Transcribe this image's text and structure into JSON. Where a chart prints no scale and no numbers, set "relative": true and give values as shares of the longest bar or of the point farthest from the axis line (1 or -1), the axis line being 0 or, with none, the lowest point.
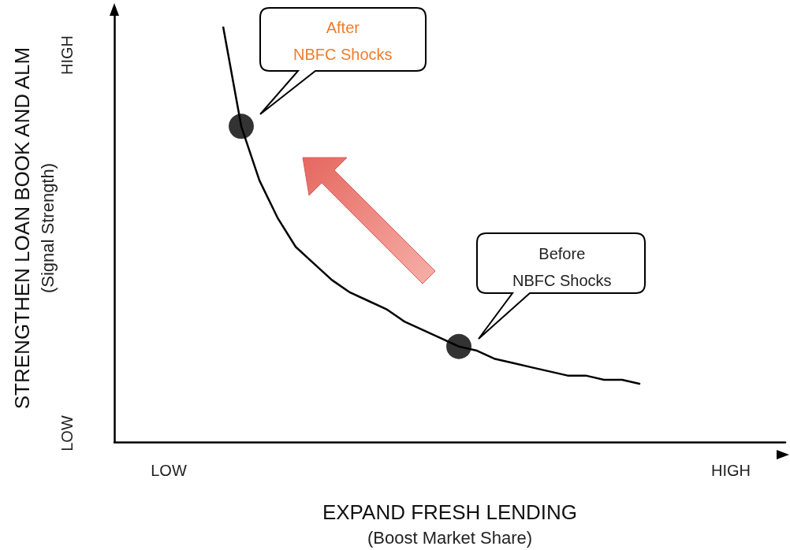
{
  "chart_data": {
    "type": "line",
    "relative": true,
    "xlabel": "EXPAND FRESH LENDING\n(Boost Market Share)",
    "ylabel": "STRENGTHEN LOAN BOOK AND ALM\n(Signal Strength)",
    "categories": [
      null,
      null,
      null,
      "LOW",
      null,
      null,
      null,
      null,
      null,
      null,
      null,
      null,
      null,
      null,
      null,
      null,
      null,
      null,
      null,
      null,
      null,
      null,
      null,
      null,
      null,
      null,
      null,
      null,
      null,
      null,
      null,
      null,
      null,
      null,
      "HIGH",
      null,
      null,
      null
    ],
    "series": [
      {
        "color": "#000000",
        "marker": "none",
        "values": [
          null,
          null,
          null,
          null,
          null,
          null,
          1.0,
          0.76,
          0.63,
          0.54,
          0.47,
          0.43,
          0.39,
          0.36,
          0.34,
          0.32,
          0.29,
          0.27,
          0.25,
          0.23,
          0.22,
          0.2,
          0.19,
          0.18,
          0.17,
          0.16,
          0.16,
          0.15,
          0.15,
          0.14,
          null,
          null,
          null,
          null,
          null,
          null,
          null,
          null
        ]
      },
      {
        "type": "scatter",
        "color": "#000000",
        "marker": "circle",
        "values": [
          null,
          null,
          null,
          null,
          null,
          null,
          null,
          0.76,
          null,
          null,
          null,
          null,
          null,
          null,
          null,
          null,
          null,
          null,
          null,
          0.23,
          null,
          null,
          null,
          null,
          null,
          null,
          null,
          null,
          null,
          null,
          null,
          null,
          null,
          null,
          null,
          null,
          null,
          null
        ]
      }
    ],
    "annotations": [
      "HIGH",
      "LOW",
      "After\nNBFC Shocks",
      "Before\nNBFC Shocks"
    ],
    "grid": false
  }
}
